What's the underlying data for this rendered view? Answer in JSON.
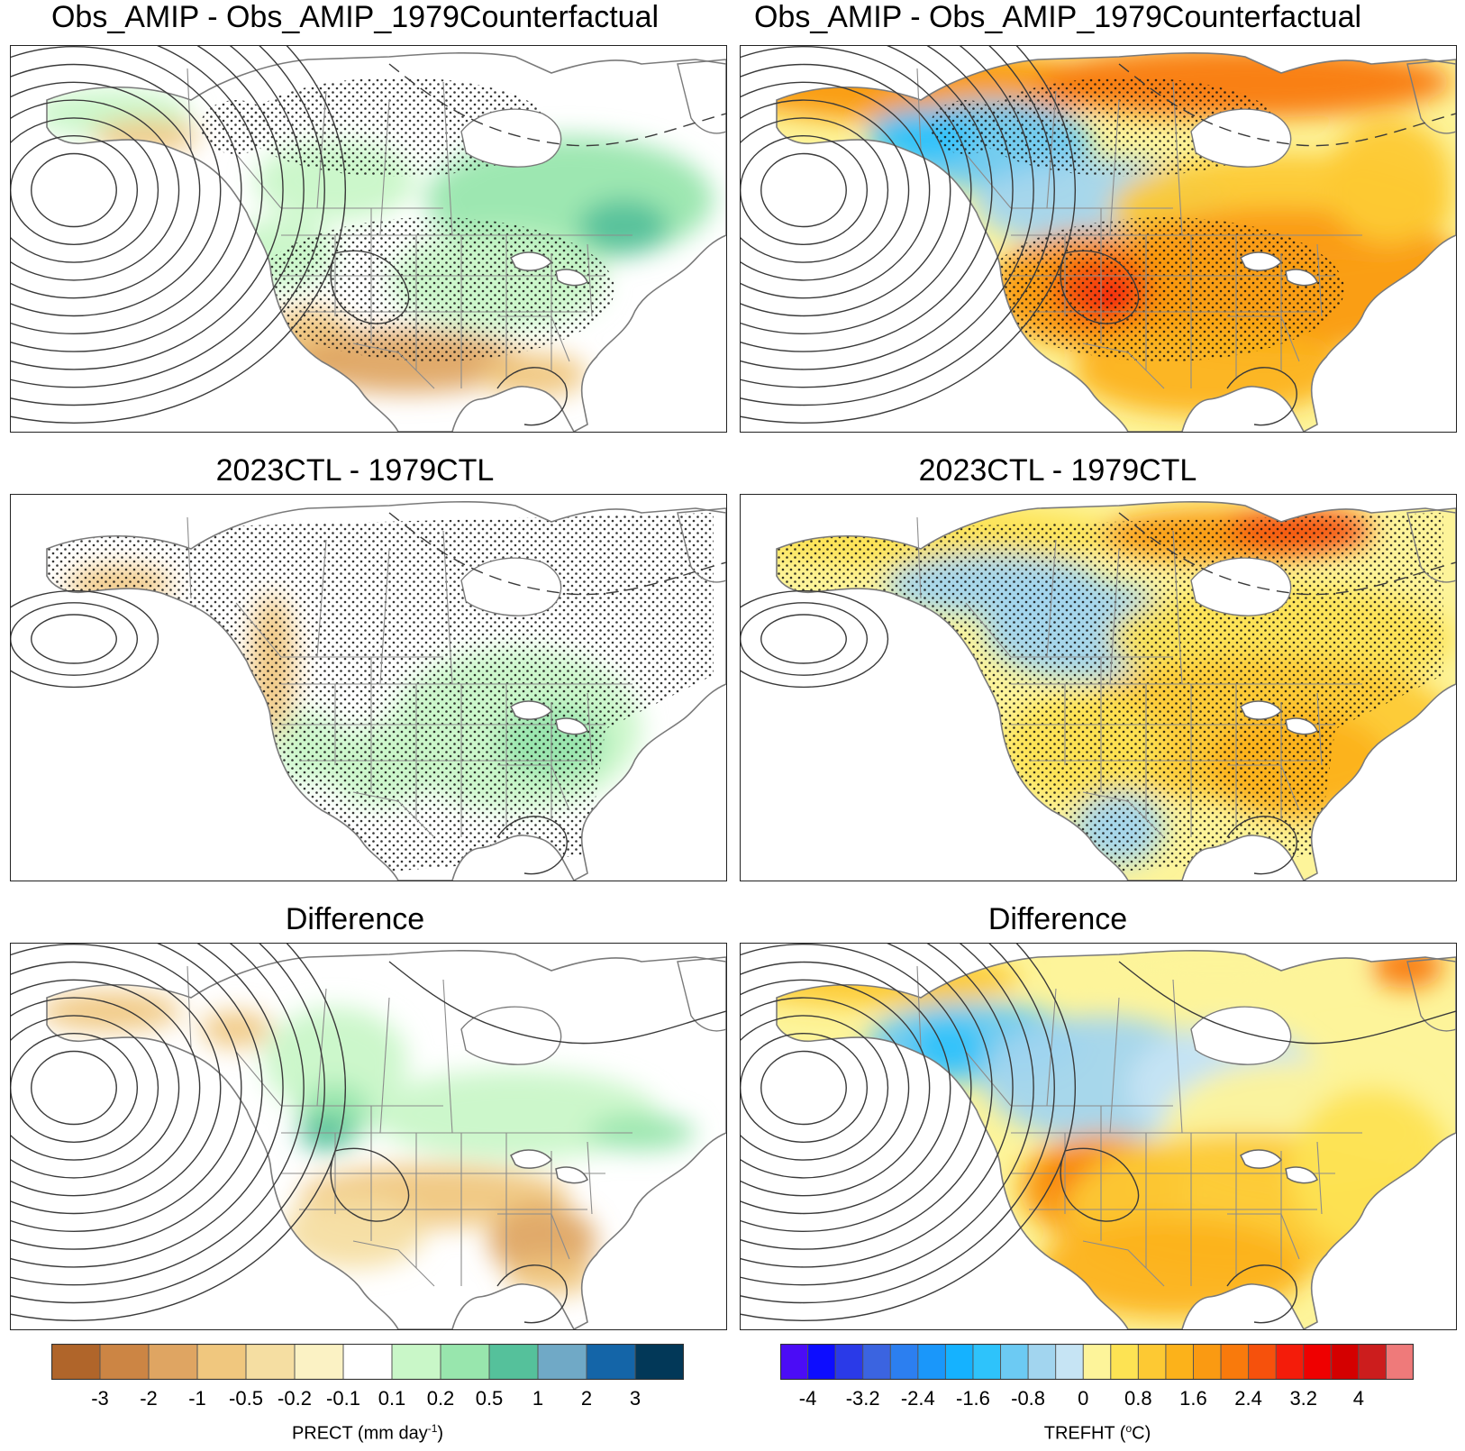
{
  "panels": [
    {
      "title": "Obs_AMIP - Obs_AMIP_1979Counterfactual",
      "field": "PRECT"
    },
    {
      "title": "Obs_AMIP - Obs_AMIP_1979Counterfactual",
      "field": "TREFHT"
    },
    {
      "title": "2023CTL - 1979CTL",
      "field": "PRECT"
    },
    {
      "title": "2023CTL - 1979CTL",
      "field": "TREFHT"
    },
    {
      "title": "Difference",
      "field": "PRECT"
    },
    {
      "title": "Difference",
      "field": "TREFHT"
    }
  ],
  "colorbars": {
    "prect": {
      "label": "PRECT (mm day",
      "label_sup": "-1",
      "label_end": ")",
      "tick_labels": [
        "-3",
        "-2",
        "-1",
        "-0.5",
        "-0.2",
        "-0.1",
        "0.1",
        "0.2",
        "0.5",
        "1",
        "2",
        "3"
      ],
      "colors": [
        "#b0652a",
        "#cc8544",
        "#dfa562",
        "#f0c77e",
        "#f5dea2",
        "#fbf2c4",
        "#ffffff",
        "#c9f7c8",
        "#98e6ad",
        "#55c19b",
        "#70a9c6",
        "#1465a8",
        "#023858"
      ]
    },
    "trefht": {
      "label": "TREFHT (",
      "label_sup": "o",
      "label_end": "C)",
      "tick_labels": [
        "-4",
        "-3.2",
        "-2.4",
        "-1.6",
        "-0.8",
        "0",
        "0.8",
        "1.6",
        "2.4",
        "3.2",
        "4"
      ],
      "colors": [
        "#4b0cf6",
        "#0d0dff",
        "#2a3ae8",
        "#3b64e0",
        "#2c7ff0",
        "#1a97fa",
        "#15b2ff",
        "#2ec3fb",
        "#6ccaf3",
        "#a2d5ef",
        "#c6e4f4",
        "#fdf49a",
        "#fde353",
        "#fdc933",
        "#fcb21a",
        "#fa9a12",
        "#f97a0c",
        "#f6510c",
        "#f41c0a",
        "#ef0000",
        "#d40000",
        "#cc1d1d",
        "#ef7a7a"
      ]
    }
  }
}
